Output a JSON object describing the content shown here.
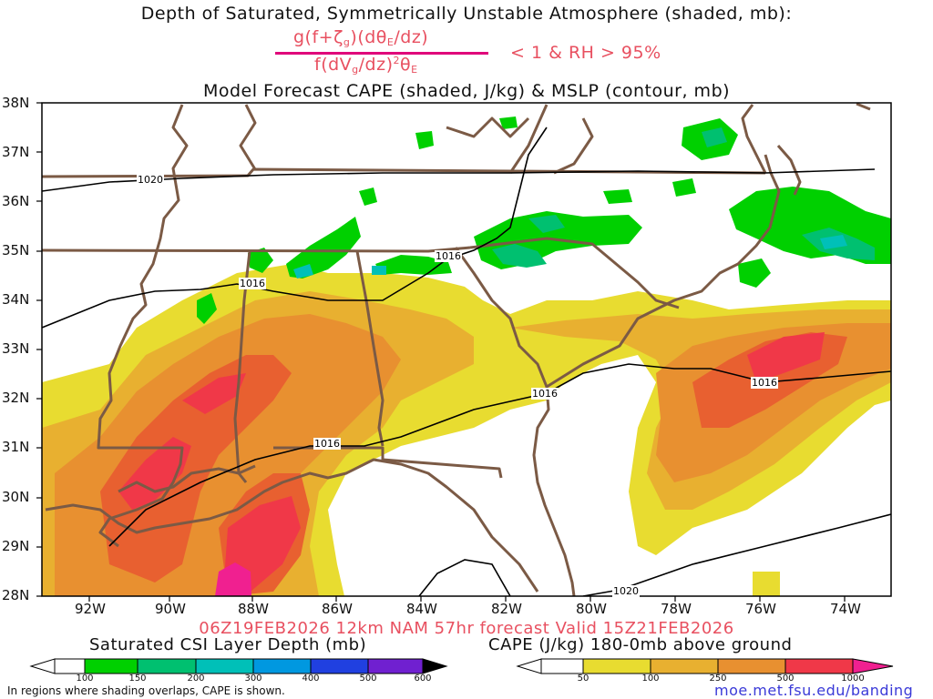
{
  "header": {
    "title_line1": "Depth of Saturated, Symmetrically Unstable Atmosphere (shaded, mb):",
    "condition": "< 1 & RH > 95%",
    "title_line3": "Model Forecast CAPE (shaded, J/kg) & MSLP (contour, mb)"
  },
  "axes": {
    "lat_labels": [
      "38N",
      "37N",
      "36N",
      "35N",
      "34N",
      "33N",
      "32N",
      "31N",
      "30N",
      "29N",
      "28N"
    ],
    "lon_labels": [
      "92W",
      "90W",
      "88W",
      "86W",
      "84W",
      "82W",
      "80W",
      "78W",
      "76W",
      "74W"
    ]
  },
  "isobars": {
    "label_1020": "1020",
    "label_1016": "1016"
  },
  "footer": {
    "run_info": "06Z19FEB2026 12km NAM 57hr forecast Valid 15Z21FEB2026",
    "csi_title": "Saturated CSI Layer Depth (mb)",
    "cape_title": "CAPE (J/kg) 180-0mb above ground",
    "csi_ticks": [
      "100",
      "150",
      "200",
      "300",
      "400",
      "500",
      "600"
    ],
    "cape_ticks": [
      "50",
      "100",
      "250",
      "500",
      "1000"
    ],
    "note": "In regions where shading overlaps, CAPE is shown.",
    "url": "moe.met.fsu.edu/banding"
  },
  "colors": {
    "state_borders": "#7b5a45",
    "isobars": "#000000",
    "csi_scale": [
      "#00d000",
      "#00c070",
      "#00c0b8",
      "#0098e0",
      "#2040e0",
      "#3020d0",
      "#8020d0",
      "#000000"
    ],
    "cape_scale": [
      "#e8dc30",
      "#e8b030",
      "#e89030",
      "#e86030",
      "#f03848",
      "#f02090"
    ]
  }
}
